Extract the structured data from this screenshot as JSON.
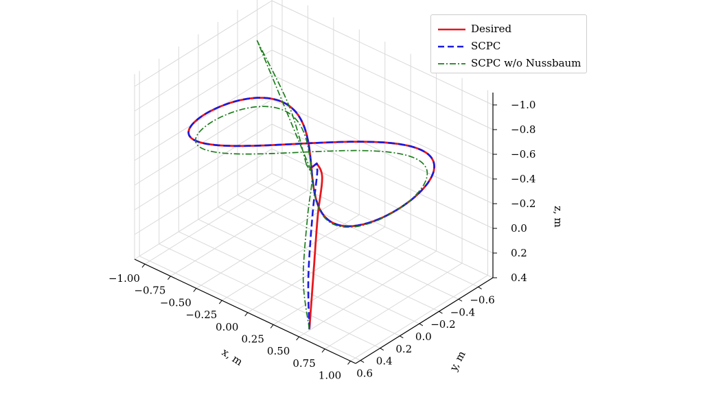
{
  "chart_data": {
    "type": "line",
    "projection": "3d",
    "xlabel": "x, m",
    "ylabel": "y, m",
    "zlabel": "z, m",
    "xlim": [
      -1.1,
      1.05
    ],
    "ylim": [
      -0.75,
      0.65
    ],
    "zlim": [
      -1.1,
      0.4
    ],
    "zaxis_inverted": true,
    "grid": true,
    "legend_position": "top-right",
    "x_ticks": [
      "−1.00",
      "−0.75",
      "−0.50",
      "−0.25",
      "0.00",
      "0.25",
      "0.50",
      "0.75",
      "1.00"
    ],
    "x_tick_values": [
      -1.0,
      -0.75,
      -0.5,
      -0.25,
      0.0,
      0.25,
      0.5,
      0.75,
      1.0
    ],
    "y_ticks": [
      "0.6",
      "0.4",
      "0.2",
      "0.0",
      "−0.2",
      "−0.4",
      "−0.6"
    ],
    "y_tick_values": [
      0.6,
      0.4,
      0.2,
      0.0,
      -0.2,
      -0.4,
      -0.6
    ],
    "z_ticks": [
      "−1.0",
      "−0.8",
      "−0.6",
      "−0.4",
      "−0.2",
      "0.0",
      "0.2",
      "0.4"
    ],
    "z_tick_values": [
      -1.0,
      -0.8,
      -0.6,
      -0.4,
      -0.2,
      0.0,
      0.2,
      0.4
    ],
    "series": [
      {
        "name": "Desired",
        "color": "#e8161b",
        "style": "solid",
        "figure_eight": {
          "center": [
            0.0,
            0.0,
            -0.55
          ],
          "x_amplitude": 0.95,
          "y_amplitude": 0.45,
          "z_amplitude": 0.1
        },
        "approach": [
          [
            0.6,
            0.65,
            0.3
          ],
          [
            0.45,
            0.45,
            0.0
          ],
          [
            0.3,
            0.25,
            -0.3
          ],
          [
            0.2,
            0.1,
            -0.5
          ],
          [
            0.1,
            0.05,
            -0.55
          ]
        ]
      },
      {
        "name": "SCPC",
        "color": "#1a1adf",
        "style": "dashed",
        "figure_eight": {
          "center": [
            0.0,
            0.0,
            -0.55
          ],
          "x_amplitude": 0.95,
          "y_amplitude": 0.45,
          "z_amplitude": 0.1
        },
        "approach": [
          [
            0.6,
            0.65,
            0.3
          ],
          [
            0.4,
            0.45,
            0.05
          ],
          [
            0.25,
            0.25,
            -0.3
          ],
          [
            0.15,
            0.1,
            -0.5
          ],
          [
            0.1,
            0.05,
            -0.55
          ]
        ]
      },
      {
        "name": "SCPC w/o Nussbaum",
        "color": "#1b7d1b",
        "style": "dashdot",
        "figure_eight": {
          "center": [
            0.0,
            0.0,
            -0.5
          ],
          "x_amplitude": 0.9,
          "y_amplitude": 0.42,
          "z_amplitude": 0.08
        },
        "approach": [
          [
            0.6,
            0.65,
            0.3
          ],
          [
            0.35,
            0.45,
            0.1
          ],
          [
            0.2,
            0.25,
            -0.25
          ],
          [
            0.1,
            0.1,
            -0.45
          ],
          [
            0.0,
            0.05,
            -0.5
          ]
        ],
        "departure": [
          [
            0.0,
            0.05,
            -0.5
          ],
          [
            -0.5,
            -0.3,
            -0.6
          ],
          [
            -1.1,
            -0.6,
            -0.75
          ]
        ]
      }
    ]
  }
}
